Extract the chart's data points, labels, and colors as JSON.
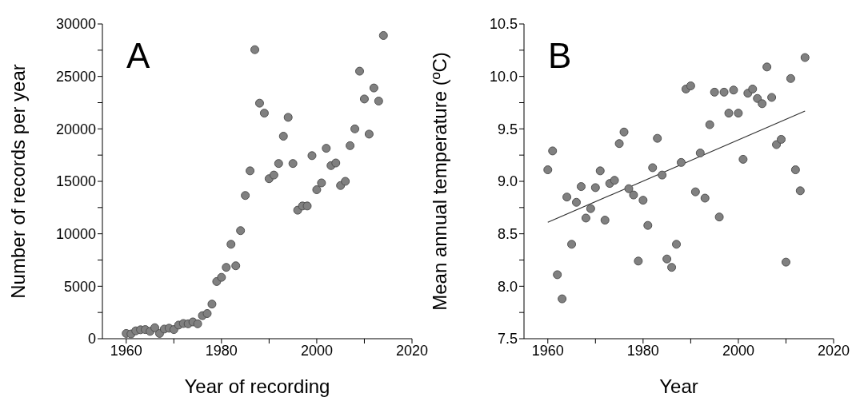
{
  "chart_data": [
    {
      "type": "scatter",
      "xlabel": "Year of recording",
      "ylabel": "Number of records per year",
      "annotations": [
        "A"
      ],
      "marker": "circle",
      "xlim": [
        1955,
        2020
      ],
      "xticks": [
        1960,
        {
          "value": 1970,
          "label": null
        },
        1980,
        {
          "value": 1990,
          "label": null
        },
        2000,
        {
          "value": 2010,
          "label": null
        },
        2020
      ],
      "ylim": [
        0,
        30000
      ],
      "yticks": [
        0,
        {
          "value": 2500,
          "label": null
        },
        5000,
        {
          "value": 7500,
          "label": null
        },
        10000,
        {
          "value": 12500,
          "label": null
        },
        15000,
        {
          "value": 17500,
          "label": null
        },
        20000,
        {
          "value": 22500,
          "label": null
        },
        25000,
        {
          "value": 27500,
          "label": null
        },
        30000
      ],
      "series": [
        {
          "color": "#808080",
          "x": [
            1960,
            1961,
            1962,
            1963,
            1964,
            1965,
            1966,
            1967,
            1968,
            1969,
            1970,
            1971,
            1972,
            1973,
            1974,
            1975,
            1976,
            1977,
            1978,
            1979,
            1980,
            1981,
            1982,
            1983,
            1984,
            1985,
            1986,
            1987,
            1988,
            1989,
            1990,
            1991,
            1992,
            1993,
            1994,
            1995,
            1996,
            1997,
            1998,
            1999,
            2000,
            2001,
            2002,
            2003,
            2004,
            2005,
            2006,
            2007,
            2008,
            2009,
            2010,
            2011,
            2012,
            2013,
            2014
          ],
          "values": [
            500,
            450,
            750,
            850,
            870,
            700,
            1050,
            500,
            920,
            1000,
            870,
            1300,
            1450,
            1420,
            1600,
            1420,
            2200,
            2400,
            3300,
            5450,
            5850,
            6800,
            9000,
            6950,
            10300,
            13650,
            16000,
            27550,
            22450,
            21500,
            15250,
            15600,
            16700,
            19300,
            21100,
            16700,
            12250,
            12650,
            12650,
            17450,
            14200,
            14850,
            18150,
            16500,
            16750,
            14600,
            15000,
            18400,
            20000,
            25500,
            22850,
            19500,
            23900,
            22650,
            28900
          ]
        }
      ]
    },
    {
      "type": "scatter",
      "xlabel": "Year",
      "ylabel": "Mean annual temperature (ºC)",
      "annotations": [
        "B"
      ],
      "marker": "circle",
      "xlim": [
        1955,
        2020
      ],
      "xticks": [
        1960,
        {
          "value": 1970,
          "label": null
        },
        1980,
        {
          "value": 1990,
          "label": null
        },
        2000,
        {
          "value": 2010,
          "label": null
        },
        2020
      ],
      "ylim": [
        7.5,
        10.5
      ],
      "yticks": [
        7.5,
        {
          "value": 7.75,
          "label": null
        },
        {
          "value": 8,
          "label": "8.0"
        },
        {
          "value": 8.25,
          "label": null
        },
        8.5,
        {
          "value": 8.75,
          "label": null
        },
        {
          "value": 9,
          "label": "9.0"
        },
        {
          "value": 9.25,
          "label": null
        },
        9.5,
        {
          "value": 9.75,
          "label": null
        },
        {
          "value": 10,
          "label": "10.0"
        },
        {
          "value": 10.25,
          "label": null
        },
        10.5
      ],
      "series": [
        {
          "color": "#808080",
          "x": [
            1960,
            1961,
            1962,
            1963,
            1964,
            1965,
            1966,
            1967,
            1968,
            1969,
            1970,
            1971,
            1972,
            1973,
            1974,
            1975,
            1976,
            1977,
            1978,
            1979,
            1980,
            1981,
            1982,
            1983,
            1984,
            1985,
            1986,
            1987,
            1988,
            1989,
            1990,
            1991,
            1992,
            1993,
            1994,
            1995,
            1996,
            1997,
            1998,
            1999,
            2000,
            2001,
            2002,
            2003,
            2004,
            2005,
            2006,
            2007,
            2008,
            2009,
            2010,
            2011,
            2012,
            2013,
            2014
          ],
          "values": [
            9.11,
            9.29,
            8.11,
            7.88,
            8.85,
            8.4,
            8.8,
            8.95,
            8.65,
            8.74,
            8.94,
            9.1,
            8.63,
            8.98,
            9.01,
            9.36,
            9.47,
            8.93,
            8.87,
            8.24,
            8.82,
            8.58,
            9.13,
            9.41,
            9.06,
            8.26,
            8.18,
            8.4,
            9.18,
            9.88,
            9.91,
            8.9,
            9.27,
            8.84,
            9.54,
            9.85,
            8.66,
            9.85,
            9.65,
            9.87,
            9.65,
            9.21,
            9.84,
            9.88,
            9.79,
            9.74,
            10.09,
            9.8,
            9.35,
            9.4,
            8.23,
            9.98,
            9.11,
            8.91,
            10.18
          ]
        },
        {
          "type": "line",
          "marker": "none",
          "color": "#333333",
          "x": [
            1960,
            2014
          ],
          "values": [
            8.61,
            9.67
          ]
        }
      ]
    }
  ]
}
